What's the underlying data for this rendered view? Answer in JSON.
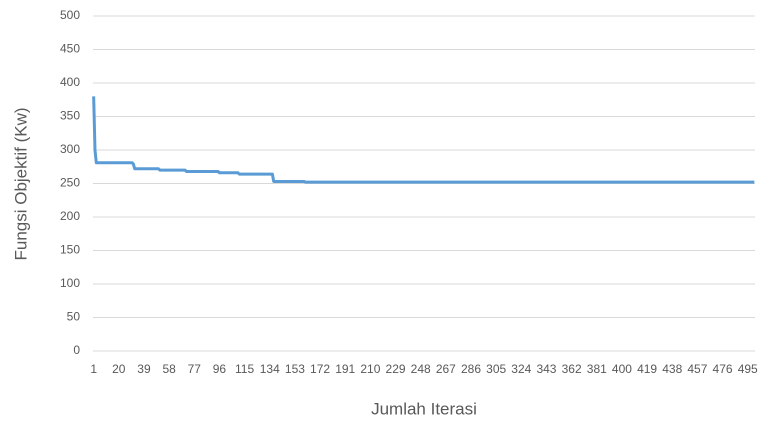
{
  "chart_data": {
    "type": "line",
    "x_label": "Jumlah Iterasi",
    "y_label": "Fungsi Objektif (Kw)",
    "x": [
      1,
      2,
      3,
      30,
      31,
      32,
      50,
      51,
      70,
      71,
      95,
      96,
      110,
      111,
      136,
      137,
      160,
      161,
      500
    ],
    "series": [
      {
        "name": "Fungsi Objektif",
        "color": "#5b9bd5",
        "values": [
          380,
          300,
          281,
          281,
          279,
          272,
          272,
          270,
          270,
          268,
          268,
          266,
          266,
          264,
          264,
          253,
          253,
          252,
          252
        ]
      }
    ],
    "xlim": [
      0.5,
      500.5
    ],
    "xticks": [
      1,
      20,
      39,
      58,
      77,
      96,
      115,
      134,
      153,
      172,
      191,
      210,
      229,
      248,
      267,
      286,
      305,
      324,
      343,
      362,
      381,
      400,
      419,
      438,
      457,
      476,
      495
    ],
    "ylim": [
      0,
      500
    ],
    "yticks": [
      0,
      50,
      100,
      150,
      200,
      250,
      300,
      350,
      400,
      450,
      500
    ],
    "grid": true
  }
}
